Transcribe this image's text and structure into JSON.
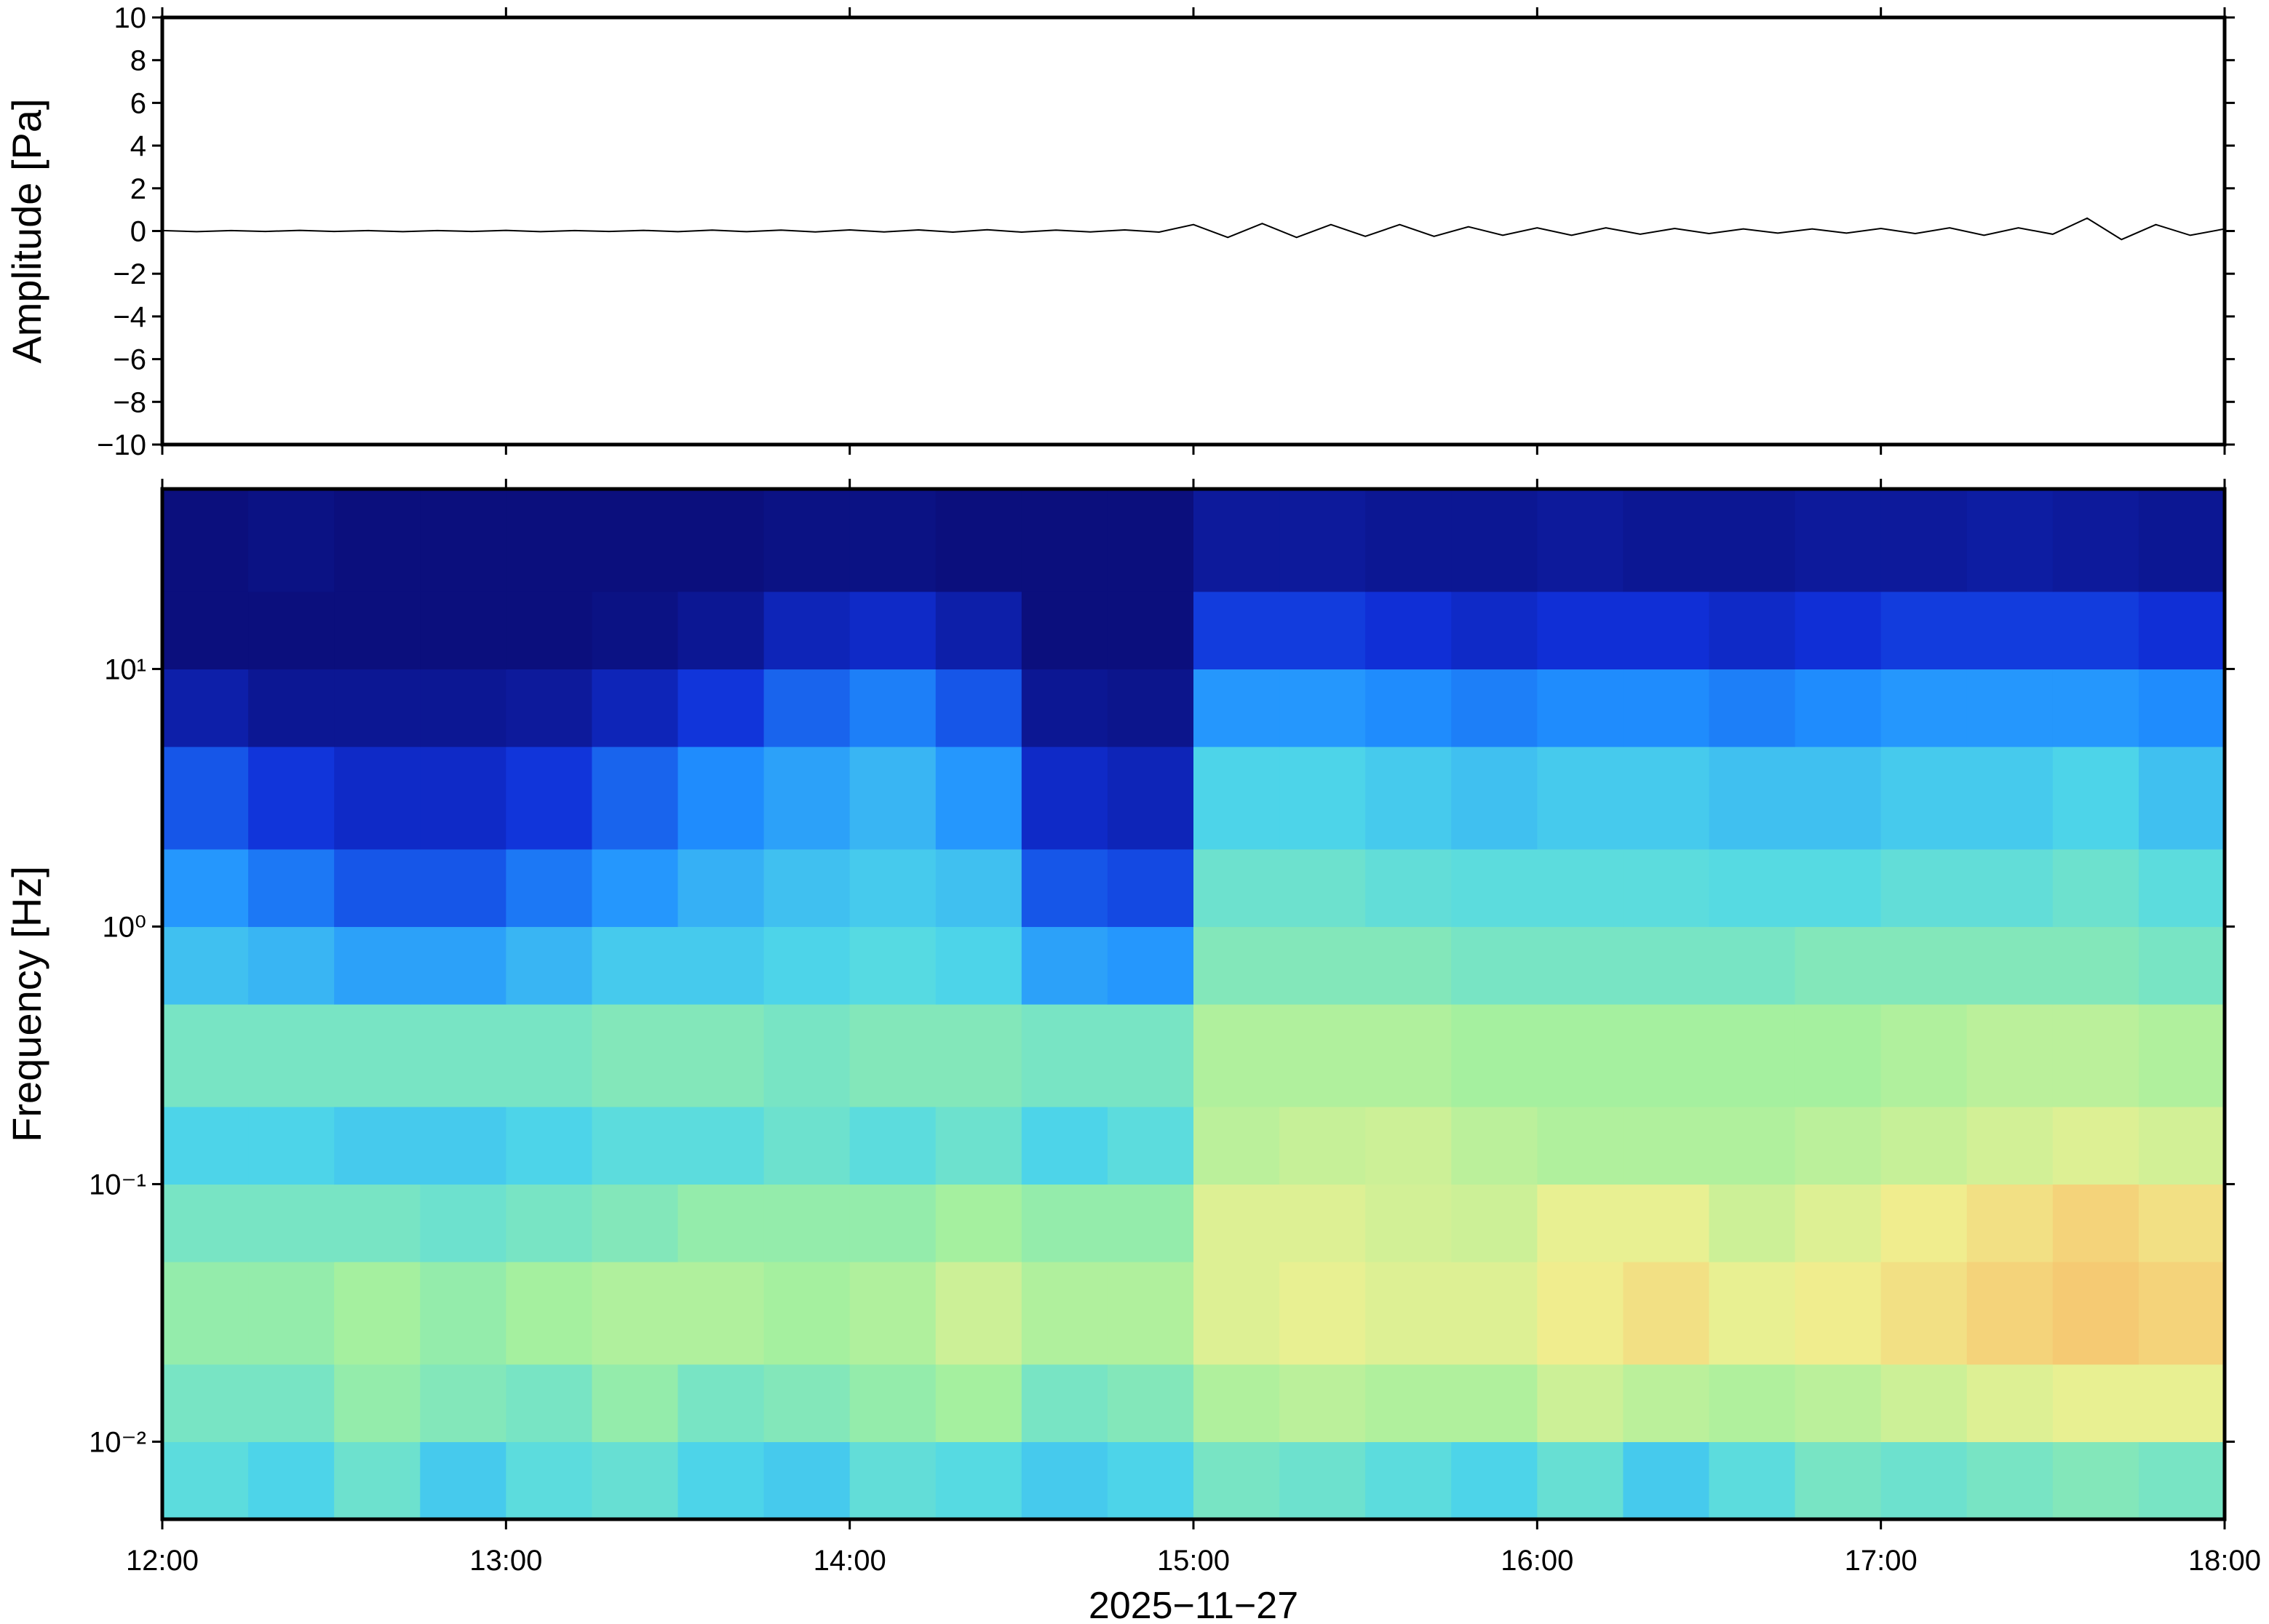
{
  "chart_data": [
    {
      "type": "line",
      "ylabel": "Amplitude [Pa]",
      "color": "#000000",
      "xlim": [
        12,
        18
      ],
      "xticks": [
        12,
        13,
        14,
        15,
        16,
        17,
        18
      ],
      "ylim": [
        -10,
        10
      ],
      "yticks": [
        {
          "value": -10,
          "label": "−10"
        },
        {
          "value": -8,
          "label": "−8"
        },
        {
          "value": -6,
          "label": "−6"
        },
        {
          "value": -4,
          "label": "−4"
        },
        {
          "value": -2,
          "label": "−2"
        },
        0,
        2,
        4,
        6,
        8,
        10
      ],
      "x": [
        12,
        12.1,
        12.2,
        12.3,
        12.4,
        12.5,
        12.6,
        12.7,
        12.8,
        12.9,
        13,
        13.1,
        13.2,
        13.3,
        13.4,
        13.5,
        13.6,
        13.7,
        13.8,
        13.9,
        14,
        14.1,
        14.2,
        14.3,
        14.4,
        14.5,
        14.6,
        14.7,
        14.8,
        14.9,
        15,
        15.1,
        15.2,
        15.3,
        15.4,
        15.5,
        15.6,
        15.7,
        15.8,
        15.9,
        16,
        16.1,
        16.2,
        16.3,
        16.4,
        16.5,
        16.6,
        16.7,
        16.8,
        16.9,
        17,
        17.1,
        17.2,
        17.3,
        17.4,
        17.5,
        17.6,
        17.7,
        17.8,
        17.9,
        18
      ],
      "values": [
        0.02,
        -0.03,
        0.02,
        -0.02,
        0.03,
        -0.02,
        0.02,
        -0.03,
        0.02,
        -0.02,
        0.03,
        -0.03,
        0.02,
        -0.02,
        0.03,
        -0.03,
        0.04,
        -0.03,
        0.04,
        -0.04,
        0.05,
        -0.04,
        0.05,
        -0.05,
        0.06,
        -0.05,
        0.04,
        -0.04,
        0.05,
        -0.05,
        0.3,
        -0.3,
        0.35,
        -0.3,
        0.3,
        -0.25,
        0.3,
        -0.25,
        0.2,
        -0.2,
        0.15,
        -0.2,
        0.15,
        -0.15,
        0.12,
        -0.12,
        0.1,
        -0.1,
        0.1,
        -0.1,
        0.12,
        -0.12,
        0.15,
        -0.2,
        0.15,
        -0.15,
        0.6,
        -0.4,
        0.3,
        -0.2,
        0.1
      ]
    },
    {
      "type": "heatmap",
      "ylabel": "Frequency [Hz]",
      "xlabel": "2025−11−27",
      "log_y": true,
      "xlim": [
        12,
        18
      ],
      "xticks": [
        {
          "value": 12,
          "label": "12:00"
        },
        {
          "value": 13,
          "label": "13:00"
        },
        {
          "value": 14,
          "label": "14:00"
        },
        {
          "value": 15,
          "label": "15:00"
        },
        {
          "value": 16,
          "label": "16:00"
        },
        {
          "value": 17,
          "label": "17:00"
        },
        {
          "value": 18,
          "label": "18:00"
        }
      ],
      "ylim": [
        0.005,
        50
      ],
      "yticks": [
        {
          "value": 0.01,
          "label": "10⁻²"
        },
        {
          "value": 0.1,
          "label": "10⁻¹"
        },
        {
          "value": 1,
          "label": "10⁰"
        },
        {
          "value": 10,
          "label": "10¹"
        }
      ],
      "colormap": [
        "#0a0a6e",
        "#1030d8",
        "#2090ff",
        "#50d8e8",
        "#a0f0a0",
        "#f0f090",
        "#f8b060",
        "#e85030"
      ],
      "x": [
        12,
        12.25,
        12.5,
        12.75,
        13,
        13.25,
        13.5,
        13.75,
        14,
        14.25,
        14.5,
        14.75,
        15,
        15.25,
        15.5,
        15.75,
        16,
        16.25,
        16.5,
        16.75,
        17,
        17.25,
        17.5,
        17.75,
        18
      ],
      "y": [
        0.005,
        0.01,
        0.02,
        0.05,
        0.1,
        0.2,
        0.5,
        1,
        2,
        5,
        10,
        20,
        50
      ],
      "values": [
        [
          0.45,
          0.42,
          0.48,
          0.4,
          0.45,
          0.47,
          0.42,
          0.4,
          0.46,
          0.44,
          0.4,
          0.42,
          0.5,
          0.48,
          0.45,
          0.42,
          0.47,
          0.4,
          0.45,
          0.5,
          0.48,
          0.5,
          0.52,
          0.5
        ],
        [
          0.5,
          0.5,
          0.55,
          0.52,
          0.5,
          0.55,
          0.5,
          0.52,
          0.55,
          0.58,
          0.5,
          0.52,
          0.6,
          0.62,
          0.6,
          0.6,
          0.65,
          0.62,
          0.6,
          0.62,
          0.65,
          0.68,
          0.7,
          0.7
        ],
        [
          0.55,
          0.55,
          0.58,
          0.55,
          0.58,
          0.6,
          0.6,
          0.58,
          0.6,
          0.65,
          0.6,
          0.6,
          0.68,
          0.7,
          0.68,
          0.68,
          0.72,
          0.75,
          0.7,
          0.72,
          0.75,
          0.78,
          0.8,
          0.78
        ],
        [
          0.5,
          0.5,
          0.5,
          0.48,
          0.5,
          0.52,
          0.55,
          0.55,
          0.55,
          0.58,
          0.55,
          0.55,
          0.68,
          0.68,
          0.66,
          0.65,
          0.7,
          0.7,
          0.65,
          0.68,
          0.72,
          0.75,
          0.78,
          0.75
        ],
        [
          0.42,
          0.42,
          0.4,
          0.4,
          0.42,
          0.45,
          0.45,
          0.48,
          0.45,
          0.48,
          0.42,
          0.45,
          0.62,
          0.64,
          0.65,
          0.62,
          0.6,
          0.6,
          0.6,
          0.62,
          0.64,
          0.66,
          0.68,
          0.66
        ],
        [
          0.5,
          0.5,
          0.5,
          0.5,
          0.5,
          0.52,
          0.52,
          0.5,
          0.52,
          0.52,
          0.5,
          0.5,
          0.6,
          0.6,
          0.6,
          0.58,
          0.58,
          0.58,
          0.58,
          0.58,
          0.6,
          0.62,
          0.62,
          0.6
        ],
        [
          0.38,
          0.36,
          0.32,
          0.32,
          0.36,
          0.4,
          0.4,
          0.42,
          0.44,
          0.42,
          0.32,
          0.3,
          0.52,
          0.52,
          0.52,
          0.5,
          0.5,
          0.5,
          0.5,
          0.52,
          0.52,
          0.52,
          0.52,
          0.5
        ],
        [
          0.3,
          0.25,
          0.2,
          0.2,
          0.25,
          0.3,
          0.35,
          0.38,
          0.4,
          0.38,
          0.2,
          0.18,
          0.48,
          0.48,
          0.46,
          0.45,
          0.45,
          0.45,
          0.44,
          0.44,
          0.46,
          0.46,
          0.48,
          0.45
        ],
        [
          0.2,
          0.15,
          0.12,
          0.12,
          0.15,
          0.22,
          0.28,
          0.32,
          0.36,
          0.3,
          0.12,
          0.1,
          0.42,
          0.42,
          0.4,
          0.38,
          0.4,
          0.4,
          0.38,
          0.38,
          0.4,
          0.4,
          0.42,
          0.38
        ],
        [
          0.08,
          0.05,
          0.05,
          0.05,
          0.06,
          0.1,
          0.15,
          0.22,
          0.26,
          0.2,
          0.05,
          0.04,
          0.3,
          0.3,
          0.28,
          0.26,
          0.28,
          0.28,
          0.26,
          0.28,
          0.3,
          0.3,
          0.3,
          0.28
        ],
        [
          0.02,
          0.02,
          0.02,
          0.02,
          0.02,
          0.03,
          0.05,
          0.1,
          0.12,
          0.08,
          0.02,
          0.02,
          0.16,
          0.16,
          0.14,
          0.12,
          0.14,
          0.14,
          0.12,
          0.14,
          0.16,
          0.16,
          0.16,
          0.14
        ],
        [
          0.02,
          0.03,
          0.02,
          0.02,
          0.02,
          0.02,
          0.02,
          0.03,
          0.03,
          0.02,
          0.02,
          0.02,
          0.06,
          0.06,
          0.05,
          0.05,
          0.06,
          0.05,
          0.05,
          0.06,
          0.06,
          0.07,
          0.06,
          0.05
        ]
      ]
    }
  ]
}
